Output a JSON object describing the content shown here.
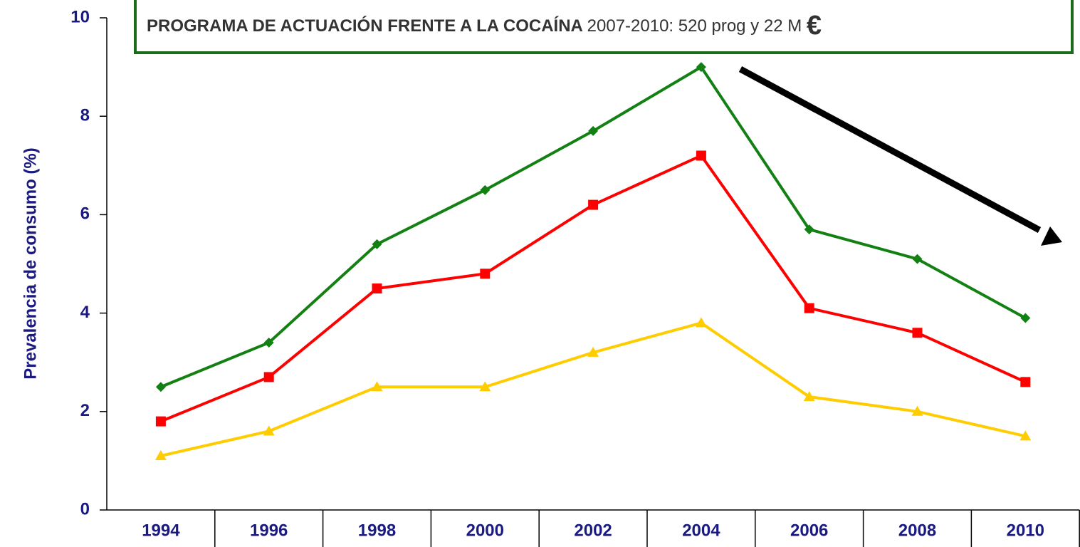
{
  "chart_data": {
    "type": "line",
    "annotation": {
      "bold": "PROGRAMA DE ACTUACIÓN FRENTE A LA COCAÍNA",
      "text": "2007-2010:  520 prog y 22 M",
      "symbol": "€"
    },
    "y_label": "Prevalencia de consumo (%)",
    "categories": [
      "1994",
      "1996",
      "1998",
      "2000",
      "2002",
      "2004",
      "2006",
      "2008",
      "2010"
    ],
    "series": [
      {
        "color": "#128012",
        "marker": "diamond",
        "values": [
          2.5,
          3.4,
          5.4,
          6.5,
          7.7,
          9.0,
          5.7,
          5.1,
          3.9
        ]
      },
      {
        "color": "#ff0000",
        "marker": "square",
        "values": [
          1.8,
          2.7,
          4.5,
          4.8,
          6.2,
          7.2,
          4.1,
          3.6,
          2.6
        ]
      },
      {
        "color": "#ffcc00",
        "marker": "triangle",
        "values": [
          1.1,
          1.6,
          2.5,
          2.5,
          3.2,
          3.8,
          2.3,
          2.0,
          1.5
        ]
      }
    ],
    "ylim": [
      0,
      10
    ],
    "yticks": [
      0,
      2,
      4,
      6,
      8,
      10
    ]
  }
}
